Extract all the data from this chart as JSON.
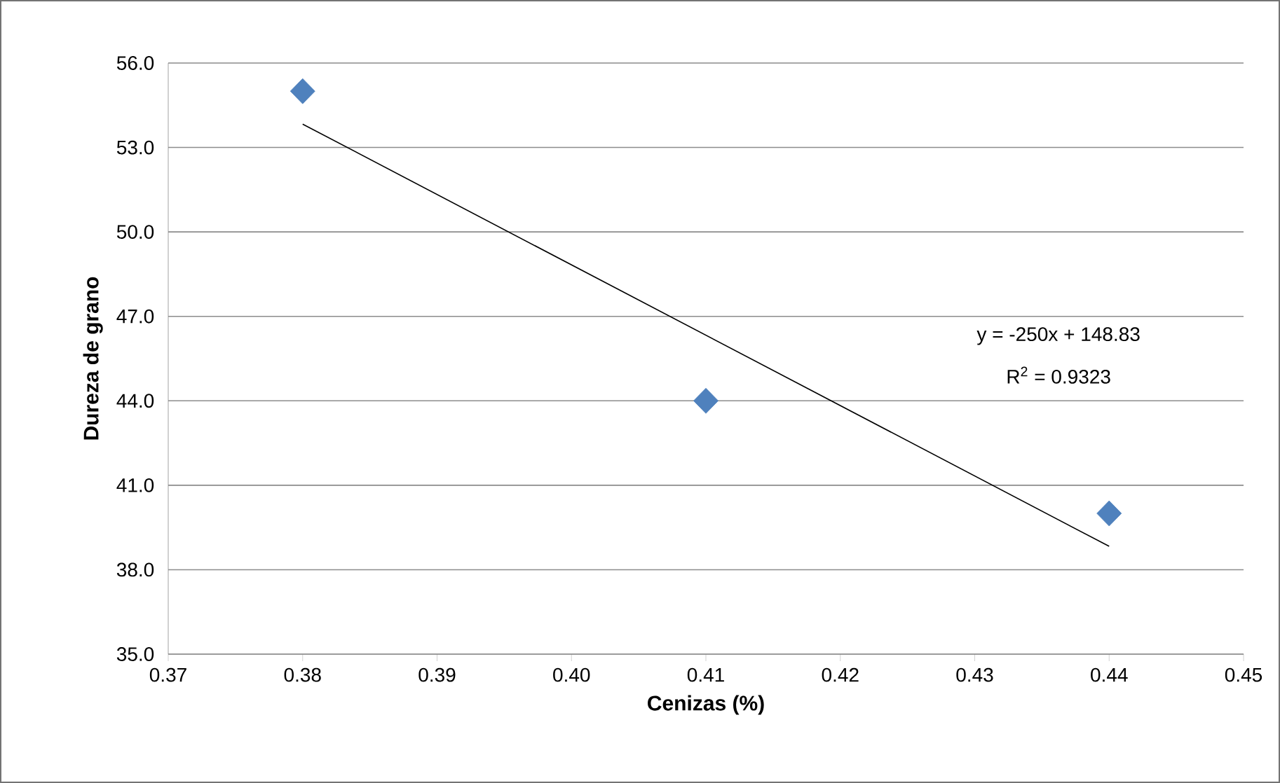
{
  "chart_data": {
    "type": "scatter",
    "xlabel": "Cenizas (%)",
    "ylabel": "Dureza de grano",
    "xlim": [
      0.37,
      0.45
    ],
    "ylim": [
      35,
      56
    ],
    "xticks": [
      {
        "value": 0.37,
        "label": "0.37"
      },
      {
        "value": 0.38,
        "label": "0.38"
      },
      {
        "value": 0.39,
        "label": "0.39"
      },
      {
        "value": 0.4,
        "label": "0.40"
      },
      {
        "value": 0.41,
        "label": "0.41"
      },
      {
        "value": 0.42,
        "label": "0.42"
      },
      {
        "value": 0.43,
        "label": "0.43"
      },
      {
        "value": 0.44,
        "label": "0.44"
      },
      {
        "value": 0.45,
        "label": "0.45"
      }
    ],
    "yticks": [
      {
        "value": 35,
        "label": "35.0"
      },
      {
        "value": 38,
        "label": "38.0"
      },
      {
        "value": 41,
        "label": "41.0"
      },
      {
        "value": 44,
        "label": "44.0"
      },
      {
        "value": 47,
        "label": "47.0"
      },
      {
        "value": 50,
        "label": "50.0"
      },
      {
        "value": 53,
        "label": "53.0"
      },
      {
        "value": 56,
        "label": "56.0"
      }
    ],
    "grid": "y",
    "series": [
      {
        "color": "#4f81bd",
        "marker": "diamond",
        "x": [
          0.38,
          0.41,
          0.44
        ],
        "values": [
          55,
          44,
          40
        ]
      },
      {
        "type": "line",
        "color": "#000000",
        "marker": "none",
        "x": [
          0.38,
          0.44
        ],
        "values": [
          53.83,
          38.83
        ]
      }
    ],
    "annotations": [
      "y = -250x + 148.83",
      "R$^{2}$ = 0.9323"
    ]
  }
}
